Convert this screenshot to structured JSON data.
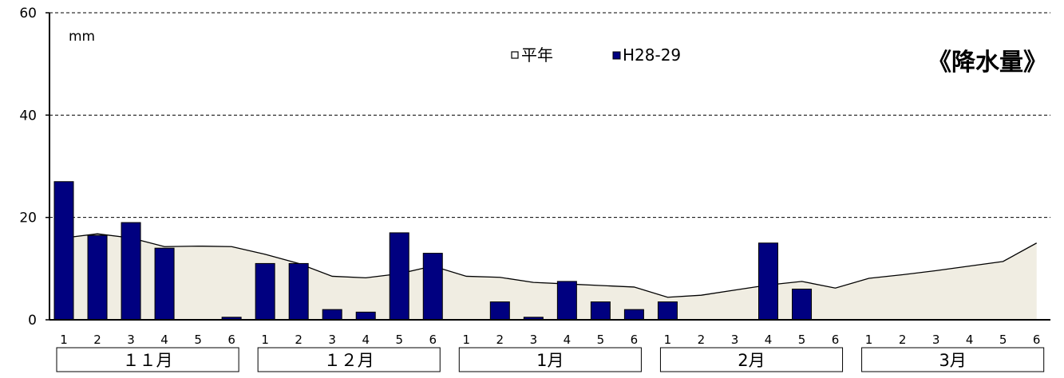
{
  "chart_data": {
    "type": "bar",
    "title": "《降水量》",
    "unit": "mm",
    "ylim": [
      0,
      60
    ],
    "yticks": [
      0,
      20,
      40,
      60
    ],
    "grid": "dashed-horizontal",
    "legend_position": "top-center",
    "months": [
      "１１月",
      "１２月",
      "1月",
      "2月",
      "3月"
    ],
    "categories": [
      "1",
      "2",
      "3",
      "4",
      "5",
      "6",
      "1",
      "2",
      "3",
      "4",
      "5",
      "6",
      "1",
      "2",
      "3",
      "4",
      "5",
      "6",
      "1",
      "2",
      "3",
      "4",
      "5",
      "6",
      "1",
      "2",
      "3",
      "4",
      "5",
      "6"
    ],
    "series": [
      {
        "name": "平年",
        "kind": "area",
        "color": "#f0ede2",
        "values": [
          16,
          16.8,
          16,
          14.3,
          14.4,
          14.3,
          12.8,
          11,
          8.5,
          8.2,
          9,
          10.5,
          8.5,
          8.3,
          7.3,
          7,
          6.7,
          6.4,
          4.4,
          4.8,
          5.8,
          6.8,
          7.5,
          6.2,
          8.1,
          8.8,
          9.6,
          10.5,
          11.4,
          15
        ]
      },
      {
        "name": "H28-29",
        "kind": "bar",
        "color": "#000080",
        "values": [
          27,
          16.5,
          19,
          14,
          0,
          0.5,
          11,
          11,
          2,
          1.5,
          17,
          13,
          0,
          3.5,
          0.5,
          7.5,
          3.5,
          2,
          3.5,
          0,
          0,
          15,
          6,
          0,
          0,
          0,
          0,
          0,
          0,
          0
        ]
      }
    ]
  }
}
